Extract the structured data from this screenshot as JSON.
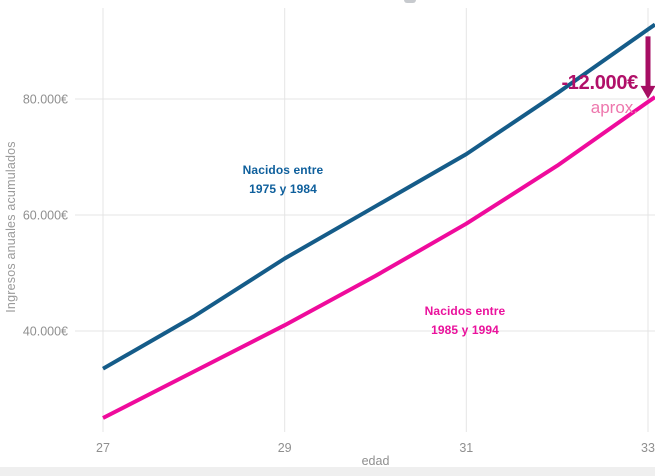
{
  "chart_data": {
    "type": "line",
    "title": "",
    "xlabel": "edad",
    "ylabel": "Ingresos anuales acumulados",
    "x": [
      27,
      28,
      29,
      30,
      31,
      32,
      33
    ],
    "x_ticks": [
      27,
      29,
      31,
      33
    ],
    "y_ticks": [
      {
        "value": 40000,
        "label": "40.000€"
      },
      {
        "value": 60000,
        "label": "60.000€"
      },
      {
        "value": 80000,
        "label": "80.000€"
      }
    ],
    "xlim": [
      27,
      33.1
    ],
    "ylim": [
      22000,
      95000
    ],
    "grid": true,
    "legend_position": "inline-labels",
    "series": [
      {
        "name": "Nacidos entre 1975 y 1984",
        "color": "#155c89",
        "values": [
          33500,
          42500,
          52500,
          61500,
          70500,
          81000,
          92000
        ]
      },
      {
        "name": "Nacidos entre 1985 y 1994",
        "color": "#ef0b9c",
        "values": [
          25000,
          33000,
          41000,
          49500,
          58500,
          68500,
          79500
        ]
      }
    ],
    "annotation": {
      "label": "-12.000€",
      "sublabel": "aprox."
    }
  },
  "labels": {
    "y_axis_title": "Ingresos anuales acumulados",
    "x_axis_title": "edad",
    "series1_label_line1": "Nacidos entre",
    "series1_label_line2": "1975 y 1984",
    "series2_label_line1": "Nacidos entre",
    "series2_label_line2": "1985 y 1994",
    "annotation_value": "-12.000€",
    "annotation_sub": "aprox."
  },
  "colors": {
    "series1": "#155c89",
    "series2": "#ef0b9c",
    "series1_label": "#0e5f9c",
    "series2_label": "#ea129c",
    "annotation_value": "#b11069",
    "annotation_sub": "#ee77ad",
    "arrow": "#a60e63",
    "grid": "#e4e4e4",
    "axis_text": "#8f8f8f",
    "background": "#ffffff"
  }
}
